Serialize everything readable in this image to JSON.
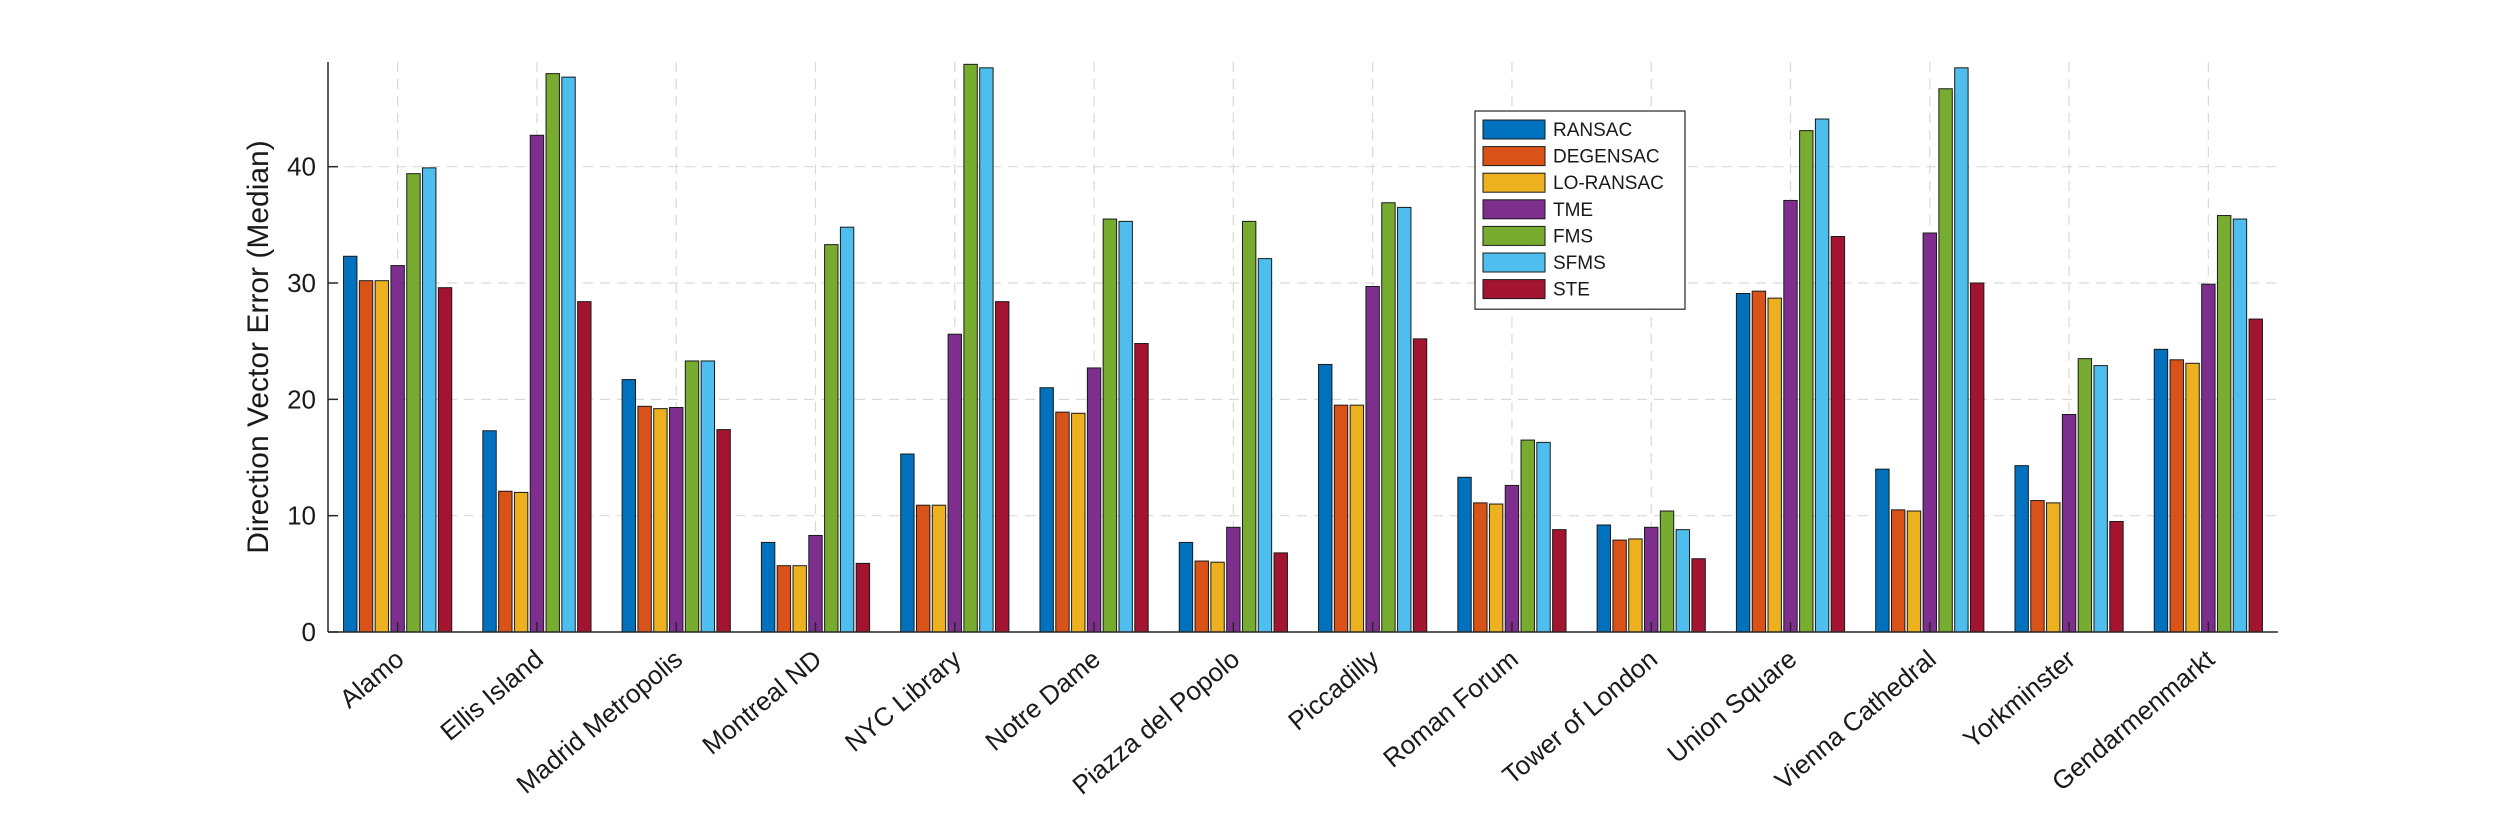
{
  "chart_data": {
    "type": "bar",
    "title": "",
    "xlabel": "",
    "ylabel": "Direction Vector Error (Median)",
    "ylim": [
      0,
      49
    ],
    "yticks": [
      0,
      10,
      20,
      30,
      40
    ],
    "grid": true,
    "legend_position": "top-center",
    "categories": [
      "Alamo",
      "Ellis Island",
      "Madrid Metropolis",
      "Montreal ND",
      "NYC Library",
      "Notre Dame",
      "Piazza del Popolo",
      "Piccadilly",
      "Roman Forum",
      "Tower of London",
      "Union Square",
      "Vienna Cathedral",
      "Yorkminster",
      "Gendarmenmarkt"
    ],
    "series": [
      {
        "name": "RANSAC",
        "color": "#0072BD",
        "values": [
          32.3,
          17.3,
          21.7,
          7.7,
          15.3,
          21.0,
          7.7,
          23.0,
          13.3,
          9.2,
          29.1,
          14.0,
          14.3,
          24.3
        ]
      },
      {
        "name": "DEGENSAC",
        "color": "#D95319",
        "values": [
          30.2,
          12.1,
          19.4,
          5.7,
          10.9,
          18.9,
          6.1,
          19.5,
          11.1,
          7.9,
          29.3,
          10.5,
          11.3,
          23.4
        ]
      },
      {
        "name": "LO-RANSAC",
        "color": "#EDB120",
        "values": [
          30.2,
          12.0,
          19.2,
          5.7,
          10.9,
          18.8,
          6.0,
          19.5,
          11.0,
          8.0,
          28.7,
          10.4,
          11.1,
          23.1
        ]
      },
      {
        "name": "TME",
        "color": "#7E2F8E",
        "values": [
          31.5,
          42.7,
          19.3,
          8.3,
          25.6,
          22.7,
          9.0,
          29.7,
          12.6,
          9.0,
          37.1,
          34.3,
          18.7,
          29.9
        ]
      },
      {
        "name": "FMS",
        "color": "#77AC30",
        "values": [
          39.4,
          48.0,
          23.3,
          33.3,
          48.8,
          35.5,
          35.3,
          36.9,
          16.5,
          10.4,
          43.1,
          46.7,
          23.5,
          35.8
        ]
      },
      {
        "name": "SFMS",
        "color": "#4DBEEE",
        "values": [
          39.9,
          47.7,
          23.3,
          34.8,
          48.5,
          35.3,
          32.1,
          36.5,
          16.3,
          8.8,
          44.1,
          48.5,
          22.9,
          35.5
        ]
      },
      {
        "name": "STE",
        "color": "#A2142F",
        "values": [
          29.6,
          28.4,
          17.4,
          5.9,
          28.4,
          24.8,
          6.8,
          25.2,
          8.8,
          6.3,
          34.0,
          30.0,
          9.5,
          26.9
        ]
      }
    ]
  }
}
